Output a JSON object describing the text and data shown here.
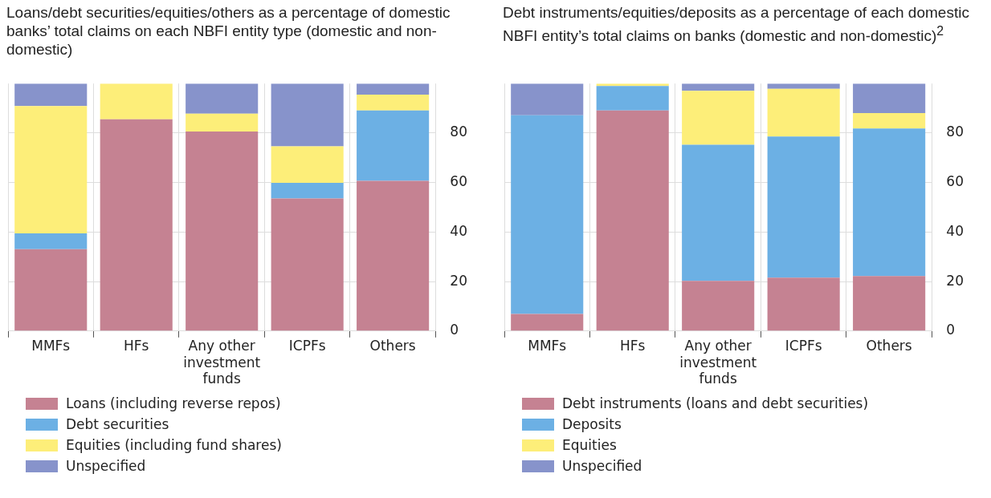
{
  "chart_data": [
    {
      "type": "bar",
      "stacked": true,
      "title": "Loans/debt securities/equities/others as a percentage of domestic banks’ total claims on each NBFI entity type (domestic and non-domestic)",
      "categories": [
        "MMFs",
        "HFs",
        "Any other investment funds",
        "ICPFs",
        "Others"
      ],
      "series": [
        {
          "name": "Loans (including reverse repos)",
          "color": "#c58292",
          "values": [
            33.1,
            85.6,
            80.6,
            53.6,
            60.7
          ]
        },
        {
          "name": "Debt securities",
          "color": "#6cb0e4",
          "values": [
            6.4,
            0,
            0,
            6.3,
            28.4
          ]
        },
        {
          "name": "Equities (including fund shares)",
          "color": "#fdee79",
          "values": [
            51.4,
            14.4,
            7.2,
            14.7,
            6.4
          ]
        },
        {
          "name": "Unspecified",
          "color": "#8793cb",
          "values": [
            9.1,
            0,
            12.2,
            25.4,
            4.5
          ]
        }
      ],
      "ylim": [
        0,
        100
      ],
      "yticks": [
        0,
        20,
        40,
        60,
        80
      ],
      "grid": true,
      "legend": "bottom"
    },
    {
      "type": "bar",
      "stacked": true,
      "title": "Debt instruments/equities/deposits as a percentage of each domestic NBFI entity’s total claims on banks (domestic and non-domestic)$^{2}$",
      "categories": [
        "MMFs",
        "HFs",
        "Any other investment funds",
        "ICPFs",
        "Others"
      ],
      "series": [
        {
          "name": "Debt instruments (loans and debt securities)",
          "color": "#c58292",
          "values": [
            6.9,
            89.1,
            20.3,
            21.6,
            22.2
          ]
        },
        {
          "name": "Deposits",
          "color": "#6cb0e4",
          "values": [
            80.3,
            9.9,
            55,
            57,
            59.6
          ]
        },
        {
          "name": "Equities",
          "color": "#fdee79",
          "values": [
            0,
            1,
            21.8,
            19.3,
            6.3
          ]
        },
        {
          "name": "Unspecified",
          "color": "#8793cb",
          "values": [
            12.8,
            0,
            2.9,
            2.1,
            11.9
          ]
        }
      ],
      "ylim": [
        0,
        100
      ],
      "yticks": [
        0,
        20,
        40,
        60,
        80
      ],
      "grid": true,
      "legend": "bottom"
    }
  ]
}
